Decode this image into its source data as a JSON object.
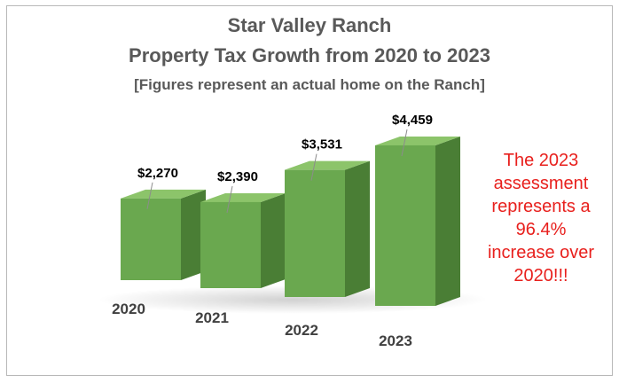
{
  "chart_data": {
    "type": "bar",
    "title": "Star Valley Ranch",
    "subtitle": "Property Tax Growth from 2020 to 2023",
    "caption": "[Figures represent an actual home on the Ranch]",
    "categories": [
      "2020",
      "2021",
      "2022",
      "2023"
    ],
    "values": [
      2270,
      2390,
      3531,
      4459
    ],
    "data_labels": [
      "$2,270",
      "$2,390",
      "$3,531",
      "$4,459"
    ],
    "style": "3d-column",
    "grid": false,
    "legend": "none",
    "bar_color": "#6aa84f"
  },
  "annotation": {
    "lines": [
      "The 2023",
      "assessment",
      "represents a",
      "96.4%",
      "increase over",
      "2020!!!"
    ],
    "color": "#e8201d"
  },
  "colors": {
    "title": "#595959",
    "front": "#6aa84f",
    "side": "#4a7e35",
    "top": "#8cc46a",
    "labels": "#000000",
    "axis_labels": "#404040"
  }
}
